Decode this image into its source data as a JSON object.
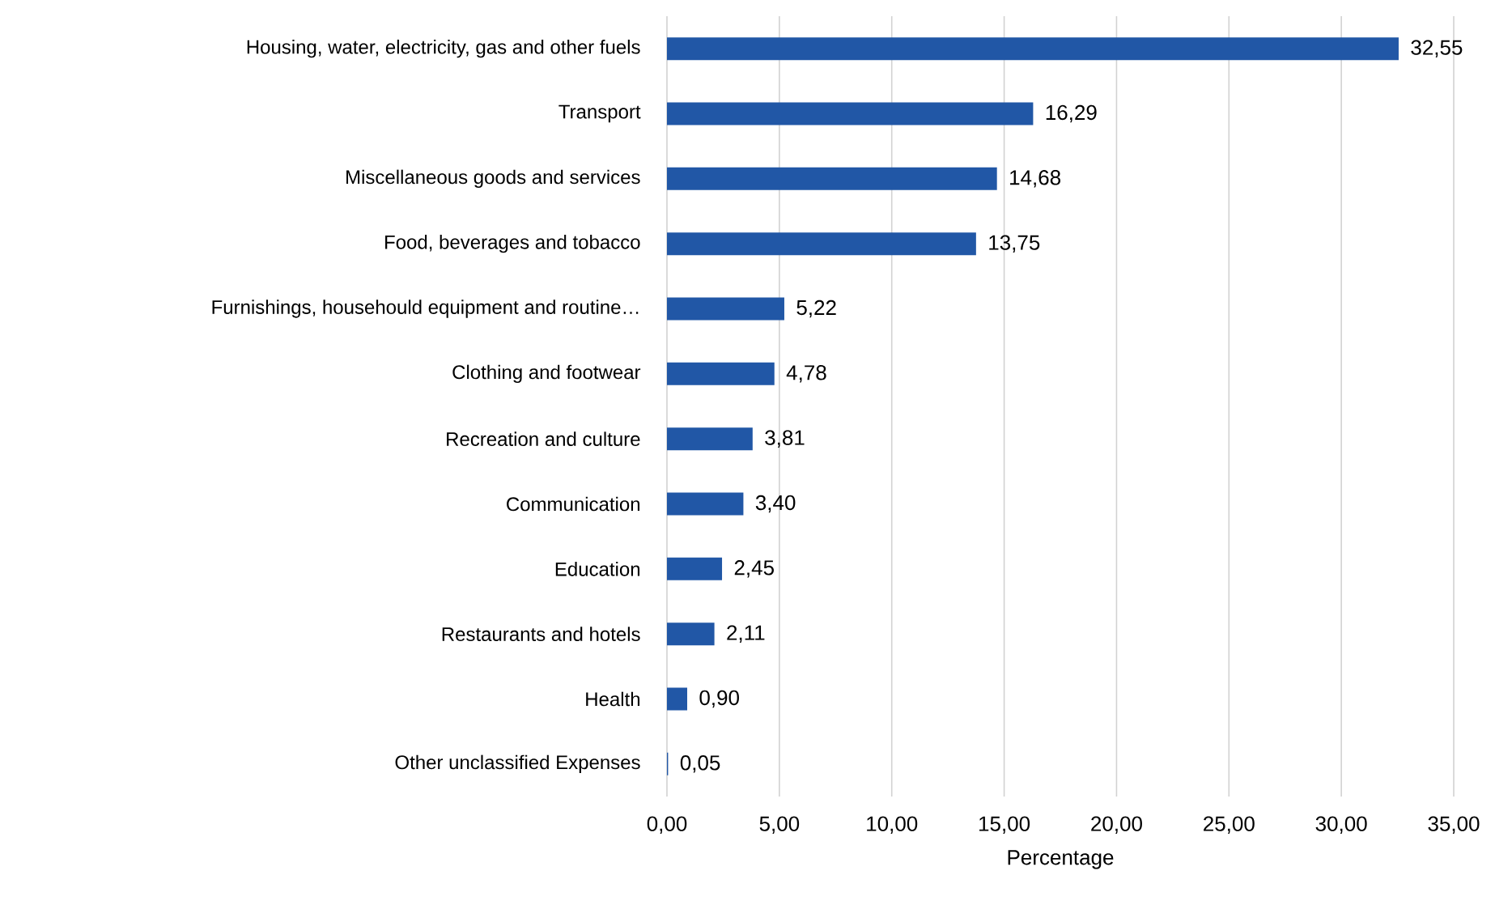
{
  "chart_data": {
    "type": "bar",
    "orientation": "horizontal",
    "xlabel": "Percentage",
    "categories": [
      "Housing, water, electricity, gas and other fuels",
      "Transport",
      "Miscellaneous goods and services",
      "Food, beverages and tobacco",
      "Furnishings, househould equipment and routine…",
      "Clothing and footwear",
      "Recreation and culture",
      "Communication",
      "Education",
      "Restaurants and hotels",
      "Health",
      "Other unclassified Expenses"
    ],
    "values": [
      32.55,
      16.29,
      14.68,
      13.75,
      5.22,
      4.78,
      3.81,
      3.4,
      2.45,
      2.11,
      0.9,
      0.05
    ],
    "value_labels": [
      "32,55",
      "16,29",
      "14,68",
      "13,75",
      "5,22",
      "4,78",
      "3,81",
      "3,40",
      "2,45",
      "2,11",
      "0,90",
      "0,05"
    ],
    "color": "#2157a6",
    "xlim": [
      0,
      35
    ],
    "xticks": [
      {
        "value": 0,
        "label": "0,00"
      },
      {
        "value": 5,
        "label": "5,00"
      },
      {
        "value": 10,
        "label": "10,00"
      },
      {
        "value": 15,
        "label": "15,00"
      },
      {
        "value": 20,
        "label": "20,00"
      },
      {
        "value": 25,
        "label": "25,00"
      },
      {
        "value": 30,
        "label": "30,00"
      },
      {
        "value": 35,
        "label": "35,00"
      }
    ],
    "grid": "x"
  }
}
